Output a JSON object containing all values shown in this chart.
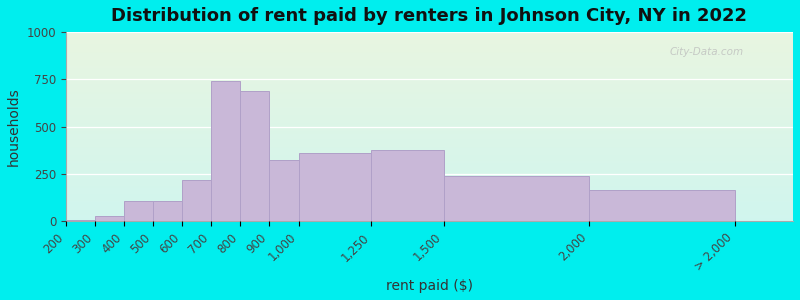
{
  "title": "Distribution of rent paid by renters in Johnson City, NY in 2022",
  "xlabel": "rent paid ($)",
  "ylabel": "households",
  "bar_color": "#c9b8d8",
  "bar_edgecolor": "#b0a0c8",
  "bar_left_edges": [
    200,
    300,
    400,
    500,
    600,
    700,
    800,
    900,
    1000,
    1250,
    1500,
    2000
  ],
  "bar_widths": [
    100,
    100,
    100,
    100,
    100,
    100,
    100,
    100,
    250,
    250,
    500,
    500
  ],
  "values": [
    5,
    30,
    110,
    110,
    220,
    740,
    690,
    325,
    360,
    375,
    240,
    165
  ],
  "tick_positions": [
    200,
    300,
    400,
    500,
    600,
    700,
    800,
    900,
    1000,
    1250,
    1500,
    2000,
    2500
  ],
  "tick_labels": [
    "200",
    "300",
    "400",
    "500",
    "600",
    "700",
    "800",
    "900",
    "1,000",
    "1,250",
    "1,500",
    "2,000",
    "> 2,000"
  ],
  "xlim": [
    200,
    2700
  ],
  "ylim": [
    0,
    1000
  ],
  "yticks": [
    0,
    250,
    500,
    750,
    1000
  ],
  "bg_outer": "#00eeee",
  "bg_plot_top": "#e8f5e0",
  "bg_plot_bottom": "#d0f5ee",
  "title_fontsize": 13,
  "axis_label_fontsize": 10,
  "tick_fontsize": 8.5,
  "watermark": "City-Data.com"
}
